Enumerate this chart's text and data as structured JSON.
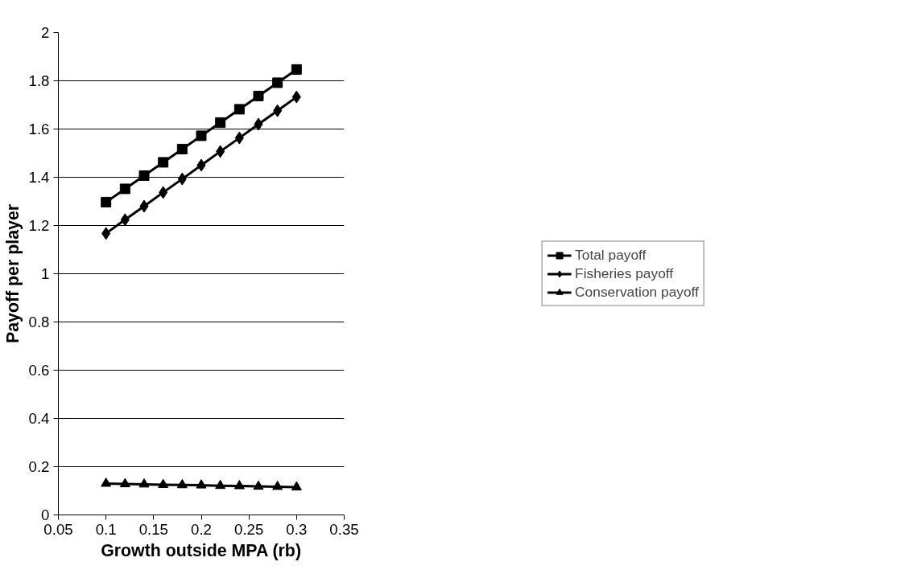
{
  "chart_data": {
    "type": "line",
    "xlabel": "Growth outside MPA (rb)",
    "ylabel": "Payoff per player",
    "x": [
      0.1,
      0.12,
      0.14,
      0.16,
      0.18,
      0.2,
      0.22,
      0.24,
      0.26,
      0.28,
      0.3
    ],
    "series": [
      {
        "name": "Total payoff",
        "color": "#000000",
        "marker": "square",
        "values": [
          1.297,
          1.352,
          1.407,
          1.462,
          1.517,
          1.572,
          1.627,
          1.682,
          1.737,
          1.792,
          1.847
        ]
      },
      {
        "name": "Fisheries payoff",
        "color": "#000000",
        "marker": "diamond",
        "values": [
          1.167,
          1.224,
          1.28,
          1.337,
          1.393,
          1.45,
          1.507,
          1.563,
          1.62,
          1.676,
          1.733
        ]
      },
      {
        "name": "Conservation payoff",
        "color": "#000000",
        "marker": "triangle",
        "values": [
          0.13,
          0.128,
          0.127,
          0.125,
          0.124,
          0.123,
          0.121,
          0.12,
          0.118,
          0.117,
          0.115
        ]
      }
    ],
    "xlim": [
      0.05,
      0.35
    ],
    "xticks": [
      0.05,
      0.1,
      0.15,
      0.2,
      0.25,
      0.3,
      0.35
    ],
    "ylim": [
      0,
      2
    ],
    "yticks": [
      0,
      0.2,
      0.4,
      0.6,
      0.8,
      1,
      1.2,
      1.4,
      1.6,
      1.8,
      2
    ],
    "grid": "y",
    "legend": "right",
    "line_style": "solid"
  }
}
